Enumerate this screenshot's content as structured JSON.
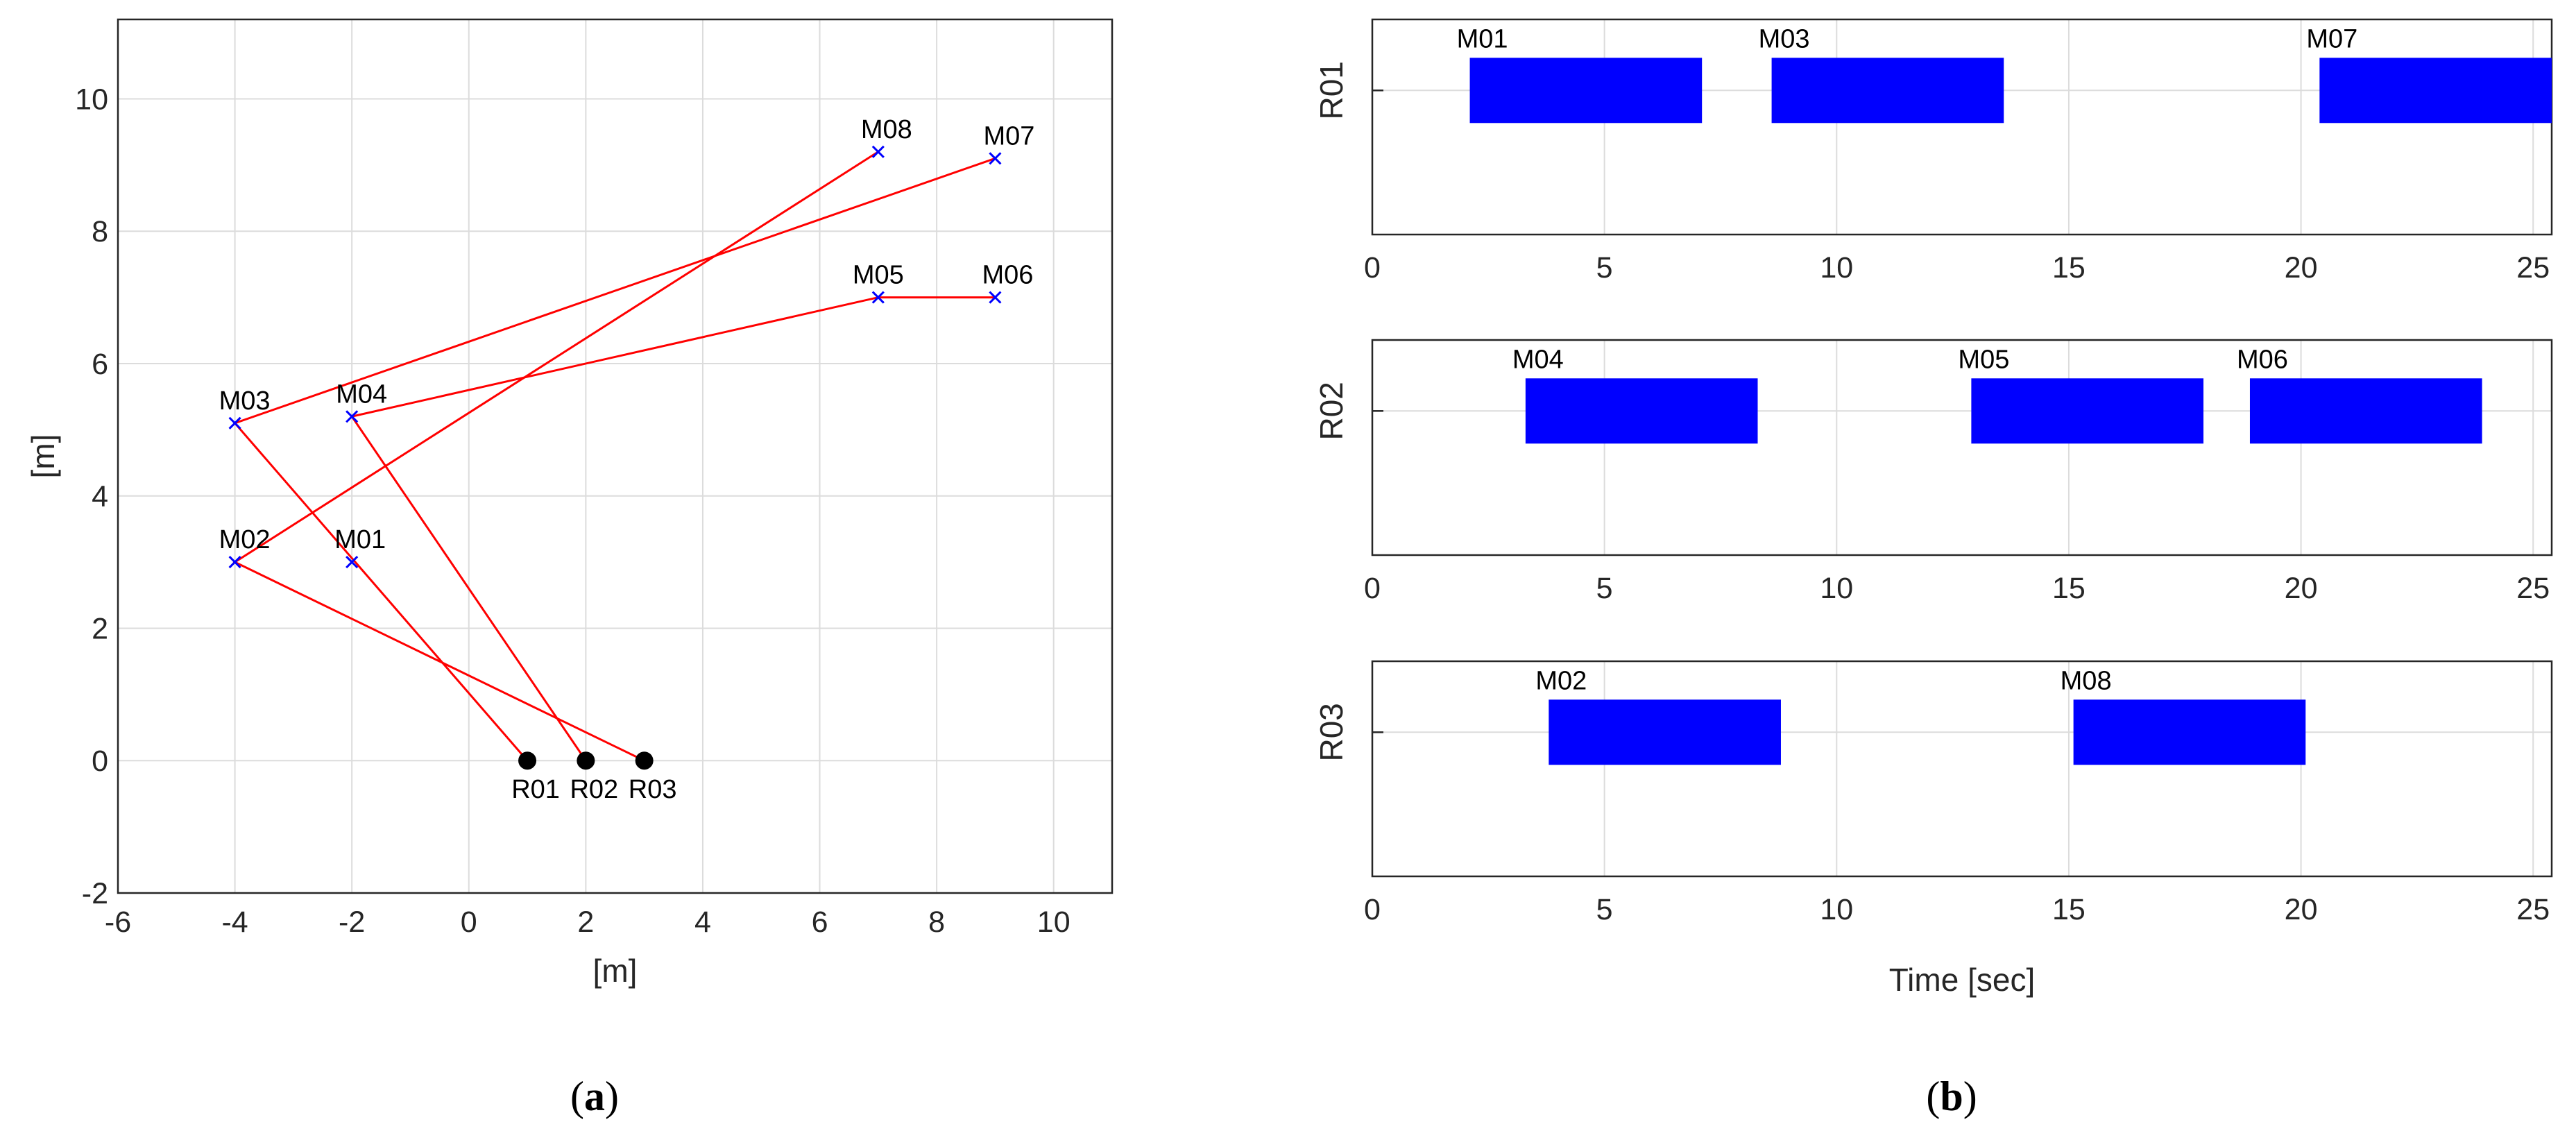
{
  "chart_data": [
    {
      "type": "scatter",
      "panel": "a",
      "xlabel": "[m]",
      "ylabel": "[m]",
      "xlim": [
        -6,
        11
      ],
      "ylim": [
        -2,
        11.2
      ],
      "xticks": [
        -6,
        -4,
        -2,
        0,
        2,
        4,
        6,
        8,
        10
      ],
      "yticks": [
        -2,
        0,
        2,
        4,
        6,
        8,
        10
      ],
      "grid": true,
      "robots": [
        {
          "label": "R01",
          "x": 1,
          "y": 0
        },
        {
          "label": "R02",
          "x": 2,
          "y": 0
        },
        {
          "label": "R03",
          "x": 3,
          "y": 0
        }
      ],
      "machines": [
        {
          "label": "M01",
          "x": -2,
          "y": 3
        },
        {
          "label": "M02",
          "x": -4,
          "y": 3
        },
        {
          "label": "M03",
          "x": -4,
          "y": 5.1
        },
        {
          "label": "M04",
          "x": -2,
          "y": 5.2
        },
        {
          "label": "M05",
          "x": 7,
          "y": 7
        },
        {
          "label": "M06",
          "x": 9,
          "y": 7
        },
        {
          "label": "M07",
          "x": 9,
          "y": 9.1
        },
        {
          "label": "M08",
          "x": 7,
          "y": 9.2
        }
      ],
      "routes": [
        {
          "robot": "R01",
          "path": [
            [
              1,
              0
            ],
            [
              -4,
              5.1
            ],
            [
              9,
              9.1
            ]
          ]
        },
        {
          "robot": "R02",
          "path": [
            [
              2,
              0
            ],
            [
              -2,
              5.2
            ],
            [
              7,
              7
            ],
            [
              9,
              7
            ]
          ]
        },
        {
          "robot": "R03",
          "path": [
            [
              3,
              0
            ],
            [
              -4,
              3
            ],
            [
              7,
              9.2
            ]
          ]
        }
      ],
      "colors": {
        "route": "#ff0000",
        "machine_marker": "#0000ff",
        "robot_marker": "#000000"
      }
    },
    {
      "type": "gantt",
      "panel": "b",
      "xlabel": "Time [sec]",
      "xlim": [
        0,
        25.4
      ],
      "xticks": [
        0,
        5,
        10,
        15,
        20,
        25
      ],
      "grid": true,
      "rows": [
        {
          "label": "R01",
          "tasks": [
            {
              "label": "M01",
              "start": 2.1,
              "end": 7.1
            },
            {
              "label": "M03",
              "start": 8.6,
              "end": 13.6
            },
            {
              "label": "M07",
              "start": 20.4,
              "end": 25.4
            }
          ]
        },
        {
          "label": "R02",
          "tasks": [
            {
              "label": "M04",
              "start": 3.3,
              "end": 8.3
            },
            {
              "label": "M05",
              "start": 12.9,
              "end": 17.9
            },
            {
              "label": "M06",
              "start": 18.9,
              "end": 23.9
            }
          ]
        },
        {
          "label": "R03",
          "tasks": [
            {
              "label": "M02",
              "start": 3.8,
              "end": 8.8
            },
            {
              "label": "M08",
              "start": 15.1,
              "end": 20.1
            }
          ]
        }
      ],
      "colors": {
        "bar": "#0000ff"
      }
    }
  ],
  "captions": [
    {
      "open": "(",
      "letter": "a",
      "close": ")"
    },
    {
      "open": "(",
      "letter": "b",
      "close": ")"
    }
  ]
}
